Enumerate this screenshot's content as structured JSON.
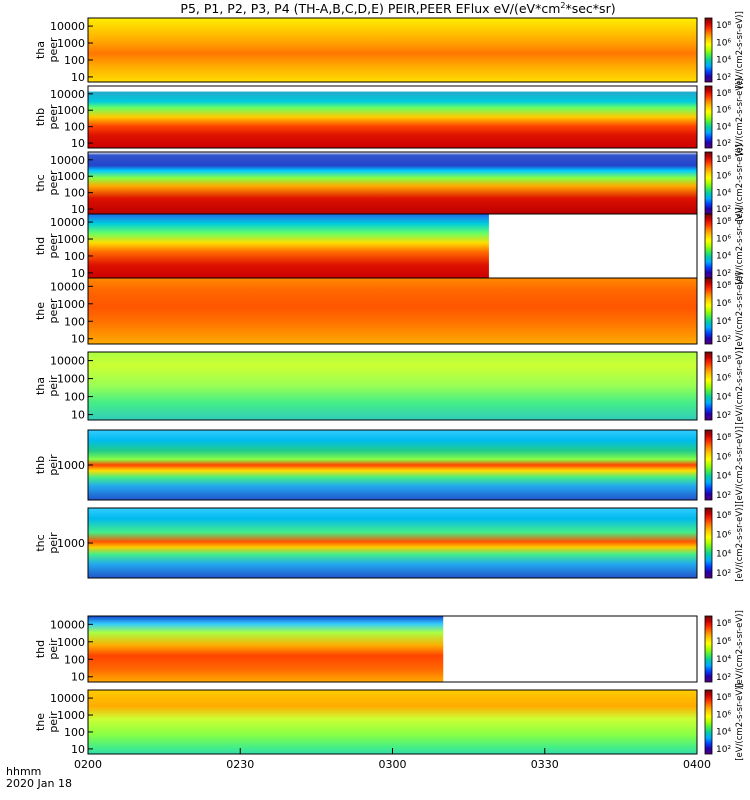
{
  "chart_data": {
    "type": "heatmap",
    "title": "P5, P1, P2, P3, P4 (TH-A,B,C,D,E) PEIR,PEER EFlux eV/(eV*cm²*sec*sr)",
    "title_parts": {
      "main": "P5, P1, P2, P3, P4 (TH-A,B,C,D,E) PEIR,PEER EFlux eV/(eV*cm",
      "superscript": "2",
      "tail": "*sec*sr)"
    },
    "x_axis": {
      "label_line1": "hhmm",
      "label_line2": "2020 Jan 18",
      "ticks": [
        "0200",
        "0230",
        "0300",
        "0330",
        "0400"
      ],
      "range": [
        "02:00",
        "04:00"
      ]
    },
    "colorbar": {
      "ticks": [
        "10⁸",
        "10⁶",
        "10⁴",
        "10²"
      ],
      "label": "[eV/(cm2-s-sr-eV)]",
      "colors": [
        "#6a0a0a",
        "#cc0000",
        "#ff3300",
        "#ff8800",
        "#ffcc00",
        "#ffff00",
        "#aaff00",
        "#44ee44",
        "#00ccaa",
        "#00aaff",
        "#0044ff",
        "#2200aa",
        "#550077"
      ]
    },
    "panels": [
      {
        "name": "tha peer",
        "probe": "tha",
        "species": "peer",
        "y_ticks": [
          "10000",
          "1000",
          "100",
          "10"
        ],
        "ylim": [
          5,
          30000
        ],
        "data_end": "04:00"
      },
      {
        "name": "thb peer",
        "probe": "thb",
        "species": "peer",
        "y_ticks": [
          "10000",
          "1000",
          "100",
          "10"
        ],
        "ylim": [
          5,
          30000
        ],
        "data_end": "04:00"
      },
      {
        "name": "thc peer",
        "probe": "thc",
        "species": "peer",
        "y_ticks": [
          "10000",
          "1000",
          "100",
          "10"
        ],
        "ylim": [
          5,
          30000
        ],
        "data_end": "04:00"
      },
      {
        "name": "thd peer",
        "probe": "thd",
        "species": "peer",
        "y_ticks": [
          "10000",
          "1000",
          "100",
          "10"
        ],
        "ylim": [
          5,
          30000
        ],
        "data_end": "03:19"
      },
      {
        "name": "the peer",
        "probe": "the",
        "species": "peer",
        "y_ticks": [
          "10000",
          "1000",
          "100",
          "10"
        ],
        "ylim": [
          5,
          30000
        ],
        "data_end": "04:00"
      },
      {
        "name": "tha peir",
        "probe": "tha",
        "species": "peir",
        "y_ticks": [
          "10000",
          "1000",
          "100",
          "10"
        ],
        "ylim": [
          5,
          30000
        ],
        "data_end": "04:00"
      },
      {
        "name": "thb peir",
        "probe": "thb",
        "species": "peir",
        "y_ticks": [
          "1000"
        ],
        "ylim": [
          5,
          30000
        ],
        "data_end": "04:00"
      },
      {
        "name": "thc peir",
        "probe": "thc",
        "species": "peir",
        "y_ticks": [
          "1000"
        ],
        "ylim": [
          5,
          30000
        ],
        "data_end": "04:00"
      },
      {
        "name": "thd peir",
        "probe": "thd",
        "species": "peir",
        "y_ticks": [
          "10000",
          "1000",
          "100",
          "10"
        ],
        "ylim": [
          5,
          30000
        ],
        "data_end": "03:10"
      },
      {
        "name": "the peir",
        "probe": "the",
        "species": "peir",
        "y_ticks": [
          "10000",
          "1000",
          "100",
          "10"
        ],
        "ylim": [
          5,
          30000
        ],
        "data_end": "04:00"
      }
    ]
  }
}
